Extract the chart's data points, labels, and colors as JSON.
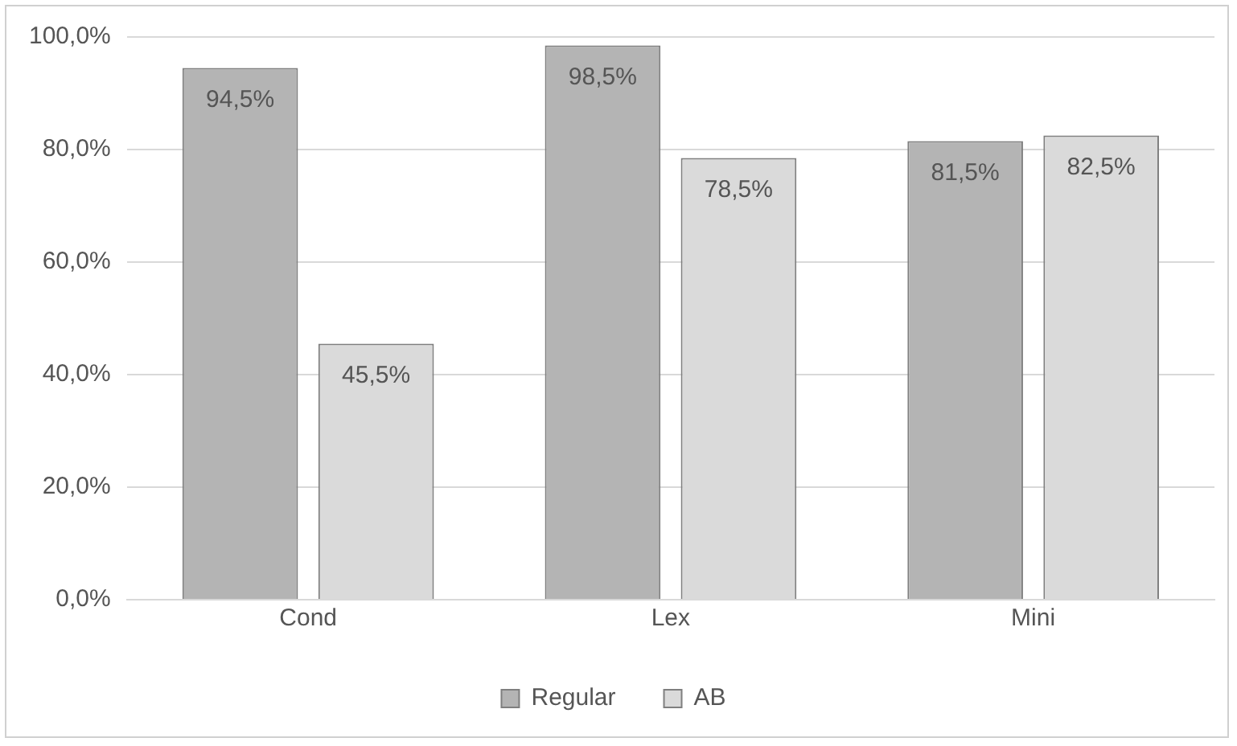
{
  "chart_data": {
    "type": "bar",
    "categories": [
      "Cond",
      "Lex",
      "Mini"
    ],
    "series": [
      {
        "name": "Regular",
        "color": "#b4b4b4",
        "values": [
          94.5,
          98.5,
          81.5
        ],
        "value_labels": [
          "94,5%",
          "98,5%",
          "81,5%"
        ]
      },
      {
        "name": "AB",
        "color": "#dadada",
        "values": [
          45.5,
          78.5,
          82.5
        ],
        "value_labels": [
          "45,5%",
          "78,5%",
          "82,5%"
        ]
      }
    ],
    "ylim": [
      0,
      100
    ],
    "yticks": [
      {
        "value": 0,
        "label": "0,0%"
      },
      {
        "value": 20,
        "label": "20,0%"
      },
      {
        "value": 40,
        "label": "40,0%"
      },
      {
        "value": 60,
        "label": "60,0%"
      },
      {
        "value": 80,
        "label": "80,0%"
      },
      {
        "value": 100,
        "label": "100,0%"
      }
    ],
    "grid": "y",
    "legend": "bottom"
  }
}
